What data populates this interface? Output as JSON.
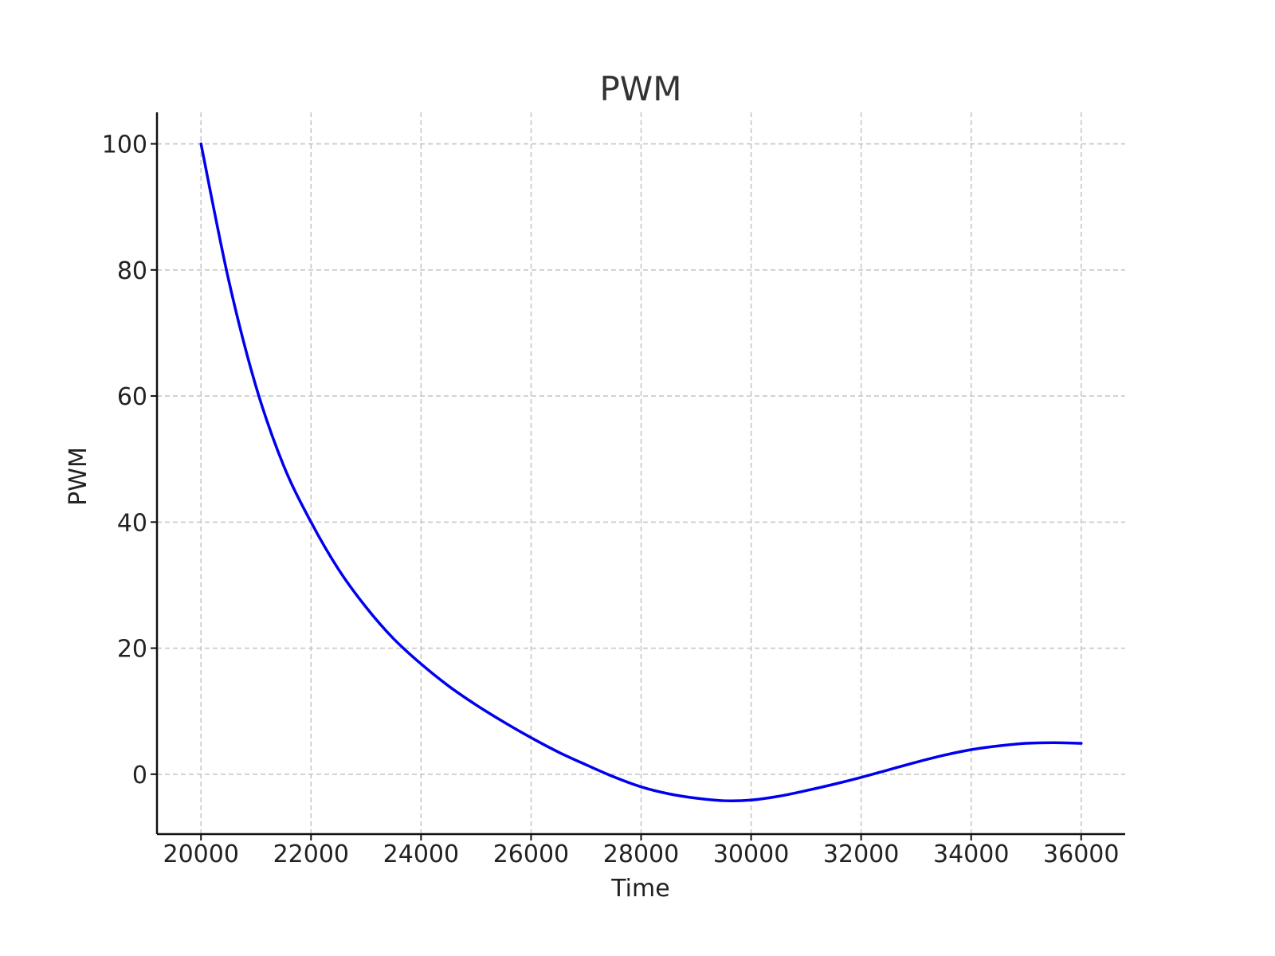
{
  "chart_data": {
    "type": "line",
    "title": "PWM",
    "xlabel": "Time",
    "ylabel": "PWM",
    "xlim": [
      19200,
      36800
    ],
    "ylim": [
      -9.5,
      105
    ],
    "xticks": [
      20000,
      22000,
      24000,
      26000,
      28000,
      30000,
      32000,
      34000,
      36000
    ],
    "yticks": [
      0,
      20,
      40,
      60,
      80,
      100
    ],
    "grid": true,
    "series": [
      {
        "color": "#0000ee",
        "x": [
          20000,
          20500,
          21000,
          21500,
          22000,
          22500,
          23000,
          23500,
          24000,
          24500,
          25000,
          25500,
          26000,
          26500,
          27000,
          27500,
          28000,
          28500,
          29000,
          29500,
          30000,
          30500,
          31000,
          31500,
          32000,
          32500,
          33000,
          33500,
          34000,
          34500,
          35000,
          35500,
          36000
        ],
        "y": [
          100,
          78.5,
          61.5,
          49,
          40,
          32.5,
          26.5,
          21.5,
          17.5,
          14,
          11,
          8.3,
          5.8,
          3.5,
          1.5,
          -0.4,
          -2,
          -3.1,
          -3.8,
          -4.2,
          -4.1,
          -3.5,
          -2.6,
          -1.6,
          -0.5,
          0.7,
          1.9,
          3,
          3.9,
          4.5,
          4.9,
          5.0,
          4.9
        ]
      }
    ]
  }
}
